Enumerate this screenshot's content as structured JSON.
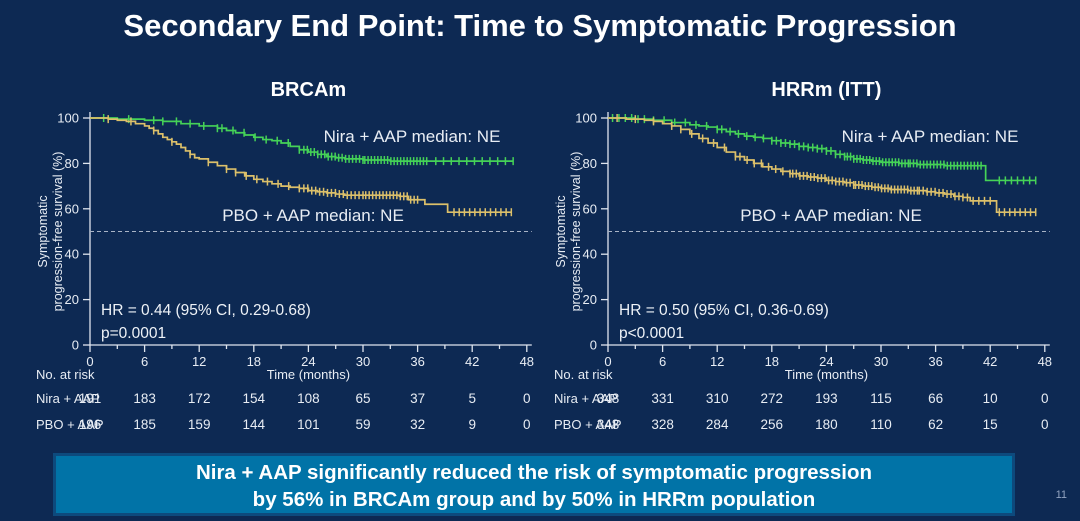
{
  "title": "Secondary End Point: Time to Symptomatic Progression",
  "banner": {
    "line1": "Nira + AAP significantly reduced the risk of symptomatic progression",
    "line2": "by 56% in BRCAm group and by 50% in HRRm population"
  },
  "page_number": "11",
  "colors": {
    "background": "#0d2953",
    "banner_bg": "#0173a7",
    "banner_border": "#0d4a7d",
    "nira_green": "#45d257",
    "pbo_yellow": "#dcc06a",
    "axis_text": "#e8edf4"
  },
  "chart_data": [
    {
      "type": "line",
      "title": "BRCAm",
      "ylabel": "Symptomatic progression-free survival (%)",
      "ylabel_lines": [
        "Symptomatic",
        "progression-free survival (%)"
      ],
      "xlabel": "Time (months)",
      "xlim": [
        0,
        48
      ],
      "ylim": [
        0,
        100
      ],
      "xticks": [
        0,
        6,
        12,
        18,
        24,
        30,
        36,
        42,
        48
      ],
      "yticks": [
        0,
        20,
        40,
        60,
        80,
        100
      ],
      "reference_line_y": 50,
      "hr_text": "HR = 0.44 (95% CI, 0.29-0.68)",
      "p_text": "p=0.0001",
      "at_risk_label": "No. at risk",
      "series": [
        {
          "name": "Nira + AAP",
          "median_label": "Nira + AAP median: NE",
          "color": "#45d257",
          "points": [
            [
              0,
              100
            ],
            [
              3,
              99.5
            ],
            [
              6,
              99
            ],
            [
              8,
              98.5
            ],
            [
              10,
              97.5
            ],
            [
              12,
              96.5
            ],
            [
              14,
              95.5
            ],
            [
              15,
              94.5
            ],
            [
              16,
              93.5
            ],
            [
              17,
              92.5
            ],
            [
              18,
              91.5
            ],
            [
              19,
              90.5
            ],
            [
              20,
              90
            ],
            [
              21,
              89
            ],
            [
              22,
              87.5
            ],
            [
              23,
              86
            ],
            [
              24,
              85
            ],
            [
              25,
              84
            ],
            [
              26,
              83
            ],
            [
              27,
              82.5
            ],
            [
              28,
              82
            ],
            [
              30,
              81.5
            ],
            [
              33,
              81
            ],
            [
              46.5,
              81
            ]
          ],
          "censor_bands": [
            [
              1.5,
              7,
              3
            ],
            [
              8,
              14,
              5
            ],
            [
              14.5,
              23,
              8
            ],
            [
              23.5,
              30,
              18
            ],
            [
              30.2,
              37,
              20
            ],
            [
              38,
              46.5,
              11
            ]
          ]
        },
        {
          "name": "PBO + AAP",
          "median_label": "PBO + AAP median: NE",
          "color": "#dcc06a",
          "points": [
            [
              0,
              100
            ],
            [
              2,
              99.5
            ],
            [
              3,
              99
            ],
            [
              4,
              98.5
            ],
            [
              5,
              97.5
            ],
            [
              6,
              96.5
            ],
            [
              6.5,
              95.5
            ],
            [
              7,
              94.5
            ],
            [
              7.5,
              93
            ],
            [
              8,
              91.5
            ],
            [
              8.5,
              90.5
            ],
            [
              9,
              89.5
            ],
            [
              9.5,
              88.5
            ],
            [
              10,
              87
            ],
            [
              10.5,
              85.5
            ],
            [
              11,
              84
            ],
            [
              11.5,
              82.5
            ],
            [
              12,
              82
            ],
            [
              13,
              80.5
            ],
            [
              14,
              79
            ],
            [
              15,
              77.5
            ],
            [
              16,
              76
            ],
            [
              17,
              74.5
            ],
            [
              18,
              73
            ],
            [
              19,
              72
            ],
            [
              20,
              71
            ],
            [
              21,
              70
            ],
            [
              22,
              69.5
            ],
            [
              23,
              69
            ],
            [
              24,
              68
            ],
            [
              25,
              67.5
            ],
            [
              26,
              67
            ],
            [
              27,
              66.5
            ],
            [
              28,
              66
            ],
            [
              34,
              65.5
            ],
            [
              35,
              64
            ],
            [
              36.8,
              62
            ],
            [
              39.3,
              58.5
            ],
            [
              46.3,
              58.5
            ]
          ],
          "censor_bands": [
            [
              2,
              7,
              3
            ],
            [
              9,
              15,
              4
            ],
            [
              16,
              23,
              7
            ],
            [
              23.5,
              30,
              16
            ],
            [
              30.3,
              36,
              16
            ],
            [
              40,
              46.3,
              12
            ]
          ]
        }
      ],
      "at_risk": [
        {
          "label": "Nira + AAP",
          "color": "#45d257",
          "values": [
            191,
            183,
            172,
            154,
            108,
            65,
            37,
            5,
            0
          ]
        },
        {
          "label": "PBO + AAP",
          "color": "#dcc06a",
          "values": [
            196,
            185,
            159,
            144,
            101,
            59,
            32,
            9,
            0
          ]
        }
      ]
    },
    {
      "type": "line",
      "title": "HRRm (ITT)",
      "ylabel": "Symptomatic progression-free survival (%)",
      "ylabel_lines": [
        "Symptomatic",
        "progression-free survival (%)"
      ],
      "xlabel": "Time (months)",
      "xlim": [
        0,
        48
      ],
      "ylim": [
        0,
        100
      ],
      "xticks": [
        0,
        6,
        12,
        18,
        24,
        30,
        36,
        42,
        48
      ],
      "yticks": [
        0,
        20,
        40,
        60,
        80,
        100
      ],
      "reference_line_y": 50,
      "hr_text": "HR = 0.50 (95% CI, 0.36-0.69)",
      "p_text": "p<0.0001",
      "at_risk_label": "No. at risk",
      "series": [
        {
          "name": "Nira + AAP",
          "median_label": "Nira + AAP median: NE",
          "color": "#45d257",
          "points": [
            [
              0,
              100
            ],
            [
              3,
              99.5
            ],
            [
              5,
              99
            ],
            [
              7,
              98
            ],
            [
              9,
              97
            ],
            [
              10,
              96.5
            ],
            [
              11,
              96
            ],
            [
              12,
              95
            ],
            [
              13,
              94
            ],
            [
              14,
              93
            ],
            [
              15,
              92
            ],
            [
              16,
              91.5
            ],
            [
              17,
              91
            ],
            [
              18,
              90
            ],
            [
              19,
              89
            ],
            [
              20,
              88.5
            ],
            [
              21,
              87.5
            ],
            [
              22,
              87
            ],
            [
              23,
              86.5
            ],
            [
              24,
              85.5
            ],
            [
              25,
              84
            ],
            [
              26,
              83
            ],
            [
              27,
              82
            ],
            [
              28,
              81.5
            ],
            [
              29,
              81
            ],
            [
              30,
              80.5
            ],
            [
              32,
              80
            ],
            [
              34,
              79.5
            ],
            [
              37,
              79
            ],
            [
              41.5,
              72.5
            ],
            [
              47,
              72.5
            ]
          ],
          "censor_bands": [
            [
              0.5,
              4,
              6
            ],
            [
              5,
              12,
              7
            ],
            [
              12.5,
              18,
              7
            ],
            [
              18.5,
              26,
              16
            ],
            [
              26.3,
              33,
              20
            ],
            [
              33.2,
              41,
              22
            ],
            [
              43,
              47,
              7
            ]
          ]
        },
        {
          "name": "PBO + AAP",
          "median_label": "PBO + AAP median: NE",
          "color": "#dcc06a",
          "points": [
            [
              0,
              100
            ],
            [
              2,
              99.5
            ],
            [
              4,
              99
            ],
            [
              5,
              98.5
            ],
            [
              6,
              97.5
            ],
            [
              7,
              96.5
            ],
            [
              8,
              95
            ],
            [
              9,
              93
            ],
            [
              10,
              91
            ],
            [
              11,
              89
            ],
            [
              12,
              87
            ],
            [
              13,
              85
            ],
            [
              14,
              83
            ],
            [
              15,
              81.5
            ],
            [
              16,
              80
            ],
            [
              17,
              78.5
            ],
            [
              18,
              77.5
            ],
            [
              19,
              76.5
            ],
            [
              20,
              75.5
            ],
            [
              21,
              74.5
            ],
            [
              22,
              74
            ],
            [
              23,
              73.5
            ],
            [
              24,
              72.5
            ],
            [
              25,
              72
            ],
            [
              26,
              71.5
            ],
            [
              27,
              70.5
            ],
            [
              28,
              70
            ],
            [
              29,
              69.5
            ],
            [
              30,
              69
            ],
            [
              31,
              68.5
            ],
            [
              33,
              68
            ],
            [
              35,
              67.5
            ],
            [
              36,
              67
            ],
            [
              37,
              66.5
            ],
            [
              38,
              65.5
            ],
            [
              39,
              65
            ],
            [
              39.8,
              63.5
            ],
            [
              42.7,
              58.5
            ],
            [
              47,
              58.5
            ]
          ],
          "censor_bands": [
            [
              1,
              7,
              4
            ],
            [
              8,
              14,
              6
            ],
            [
              14.5,
              20,
              8
            ],
            [
              20.3,
              27,
              18
            ],
            [
              27.2,
              34,
              20
            ],
            [
              34.2,
              39,
              12
            ],
            [
              39.5,
              42,
              5
            ],
            [
              43,
              47,
              8
            ]
          ]
        }
      ],
      "at_risk": [
        {
          "label": "Nira + AAP",
          "color": "#45d257",
          "values": [
            348,
            331,
            310,
            272,
            193,
            115,
            66,
            10,
            0
          ]
        },
        {
          "label": "PBO + AAP",
          "color": "#dcc06a",
          "values": [
            348,
            328,
            284,
            256,
            180,
            110,
            62,
            15,
            0
          ]
        }
      ]
    }
  ]
}
